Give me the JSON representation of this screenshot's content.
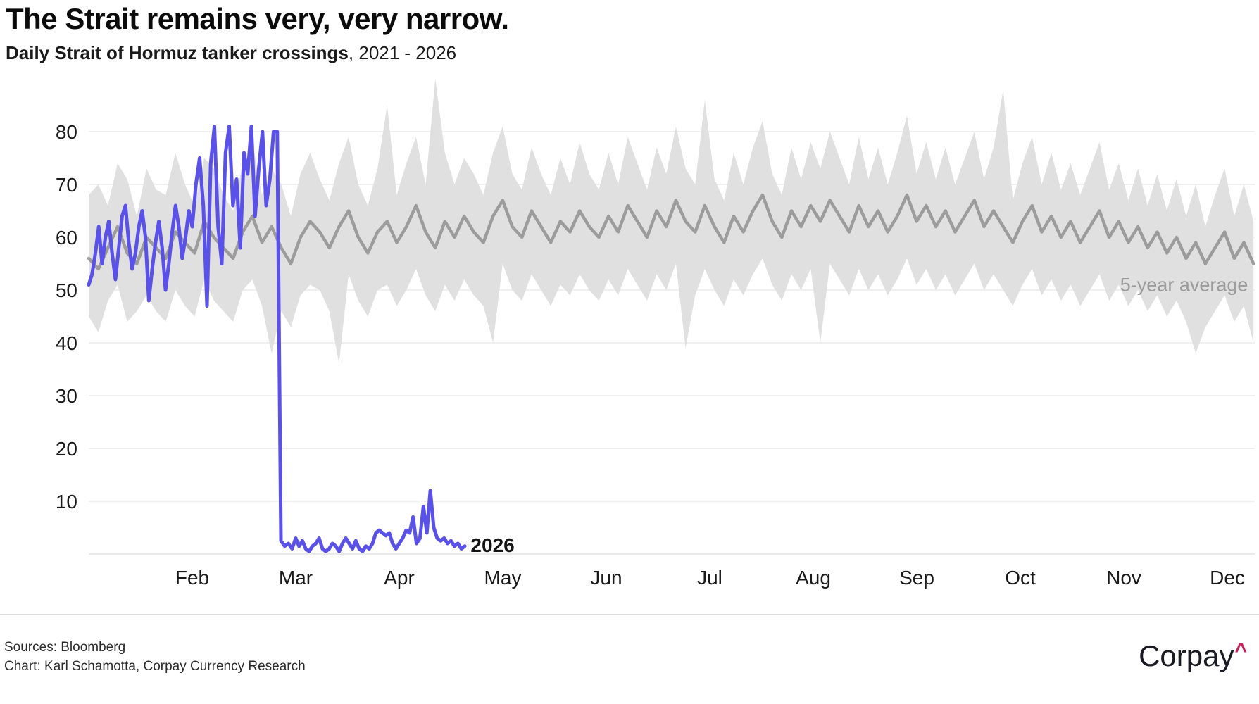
{
  "header": {
    "title": "The Strait remains very, very narrow.",
    "subtitle_strong": "Daily Strait of Hormuz tanker crossings",
    "subtitle_rest": ", 2021 - 2026"
  },
  "footer": {
    "sources": "Sources: Bloomberg",
    "credit": "Chart: Karl Schamotta, Corpay Currency Research",
    "logo_text": "Corpay",
    "logo_caret": "^",
    "logo_caret_color": "#cb2159"
  },
  "chart_data": {
    "type": "line",
    "title": "The Strait remains very, very narrow.",
    "subtitle": "Daily Strait of Hormuz tanker crossings, 2021 - 2026",
    "xlabel": "",
    "ylabel": "",
    "grid": true,
    "ylim": [
      0,
      90
    ],
    "yticks": [
      10,
      20,
      30,
      40,
      50,
      60,
      70,
      80
    ],
    "xticks": [
      {
        "label": "Feb",
        "month_index": 1
      },
      {
        "label": "Mar",
        "month_index": 2
      },
      {
        "label": "Apr",
        "month_index": 3
      },
      {
        "label": "May",
        "month_index": 4
      },
      {
        "label": "Jun",
        "month_index": 5
      },
      {
        "label": "Jul",
        "month_index": 6
      },
      {
        "label": "Aug",
        "month_index": 7
      },
      {
        "label": "Sep",
        "month_index": 8
      },
      {
        "label": "Oct",
        "month_index": 9
      },
      {
        "label": "Nov",
        "month_index": 10
      },
      {
        "label": "Dec",
        "month_index": 11
      }
    ],
    "band": {
      "name": "5-year range",
      "color": "#e0e0e0",
      "x_start_month": 0,
      "x_step_month": 0.093,
      "upper": [
        68,
        70,
        66,
        74,
        71,
        64,
        73,
        69,
        68,
        76,
        70,
        66,
        75,
        73,
        68,
        65,
        74,
        78,
        68,
        73,
        70,
        64,
        72,
        76,
        71,
        67,
        74,
        79,
        70,
        66,
        73,
        85,
        68,
        74,
        79,
        70,
        90,
        76,
        70,
        75,
        72,
        68,
        76,
        81,
        72,
        69,
        77,
        72,
        68,
        75,
        70,
        78,
        72,
        69,
        76,
        70,
        79,
        74,
        69,
        77,
        72,
        81,
        73,
        70,
        86,
        71,
        67,
        76,
        70,
        77,
        82,
        72,
        68,
        77,
        71,
        78,
        73,
        80,
        75,
        70,
        79,
        71,
        77,
        70,
        76,
        83,
        72,
        78,
        71,
        77,
        70,
        75,
        80,
        71,
        77,
        88,
        67,
        74,
        79,
        70,
        76,
        69,
        74,
        68,
        73,
        78,
        69,
        74,
        67,
        73,
        66,
        72,
        65,
        71,
        64,
        70,
        62,
        68,
        73,
        64,
        70,
        63
      ],
      "lower": [
        45,
        42,
        48,
        51,
        44,
        46,
        49,
        46,
        44,
        50,
        47,
        45,
        52,
        48,
        46,
        44,
        50,
        52,
        47,
        38,
        46,
        43,
        49,
        51,
        50,
        46,
        36,
        53,
        48,
        45,
        50,
        51,
        47,
        50,
        54,
        49,
        46,
        51,
        48,
        52,
        49,
        47,
        40,
        55,
        50,
        48,
        53,
        50,
        47,
        51,
        49,
        53,
        50,
        48,
        52,
        49,
        54,
        51,
        48,
        53,
        50,
        55,
        39,
        49,
        54,
        50,
        47,
        52,
        49,
        53,
        56,
        51,
        48,
        53,
        50,
        54,
        40,
        55,
        52,
        49,
        54,
        50,
        53,
        49,
        52,
        56,
        51,
        54,
        50,
        53,
        49,
        52,
        55,
        50,
        53,
        50,
        47,
        51,
        54,
        49,
        52,
        48,
        51,
        47,
        50,
        53,
        48,
        51,
        47,
        50,
        46,
        49,
        45,
        48,
        44,
        38,
        43,
        46,
        49,
        44,
        47,
        40
      ]
    },
    "series": [
      {
        "name": "5-year average",
        "color": "#9c9c9c",
        "x_start_month": 0,
        "x_step_month": 0.093,
        "values": [
          56,
          54,
          58,
          62,
          57,
          55,
          60,
          58,
          56,
          61,
          59,
          57,
          63,
          60,
          58,
          56,
          61,
          64,
          59,
          62,
          58,
          55,
          60,
          63,
          61,
          58,
          62,
          65,
          60,
          57,
          61,
          63,
          59,
          62,
          66,
          61,
          58,
          63,
          60,
          64,
          61,
          59,
          64,
          67,
          62,
          60,
          65,
          62,
          59,
          63,
          61,
          65,
          62,
          60,
          64,
          61,
          66,
          63,
          60,
          65,
          62,
          67,
          63,
          61,
          66,
          62,
          59,
          64,
          61,
          65,
          68,
          63,
          60,
          65,
          62,
          66,
          63,
          67,
          64,
          61,
          66,
          62,
          65,
          61,
          64,
          68,
          63,
          66,
          62,
          65,
          61,
          64,
          67,
          62,
          65,
          62,
          59,
          63,
          66,
          61,
          64,
          60,
          63,
          59,
          62,
          65,
          60,
          63,
          59,
          62,
          58,
          61,
          57,
          60,
          56,
          59,
          55,
          58,
          61,
          56,
          59,
          55
        ]
      },
      {
        "name": "2026",
        "color": "#5a51e8",
        "start_month": 0,
        "month_lengths": [
          31,
          28,
          31,
          30
        ],
        "values": [
          51,
          53,
          57,
          62,
          55,
          60,
          63,
          57,
          52,
          58,
          64,
          66,
          59,
          54,
          57,
          62,
          65,
          60,
          48,
          54,
          59,
          63,
          58,
          50,
          55,
          61,
          66,
          62,
          56,
          60,
          65,
          62,
          70,
          75,
          66,
          47,
          74,
          81,
          62,
          55,
          76,
          81,
          66,
          71,
          58,
          76,
          72,
          81,
          64,
          73,
          80,
          66,
          71,
          80,
          80,
          2.5,
          1.5,
          2,
          1,
          3,
          1.5,
          2.5,
          1,
          0.5,
          1.5,
          2,
          3,
          1,
          0.5,
          1,
          2,
          1.5,
          0.5,
          2,
          3,
          2,
          1,
          2.5,
          1,
          0.5,
          1.5,
          1,
          2,
          4,
          4.5,
          4,
          3.5,
          4,
          2,
          1,
          2,
          3,
          4.5,
          4,
          7,
          2,
          3,
          9,
          4,
          12,
          5,
          3,
          2.5,
          3,
          2,
          2.5,
          1.5,
          2,
          1,
          1.5
        ]
      }
    ],
    "annotations": [
      {
        "text": "5-year average",
        "x_month": 11.2,
        "value": 51,
        "align": "end",
        "cls": "ann-avg"
      },
      {
        "text": "2026",
        "x_month": 3.69,
        "value": 1.6,
        "align": "start",
        "cls": "ann-2026"
      }
    ],
    "legend_position": "inline-annotations"
  }
}
